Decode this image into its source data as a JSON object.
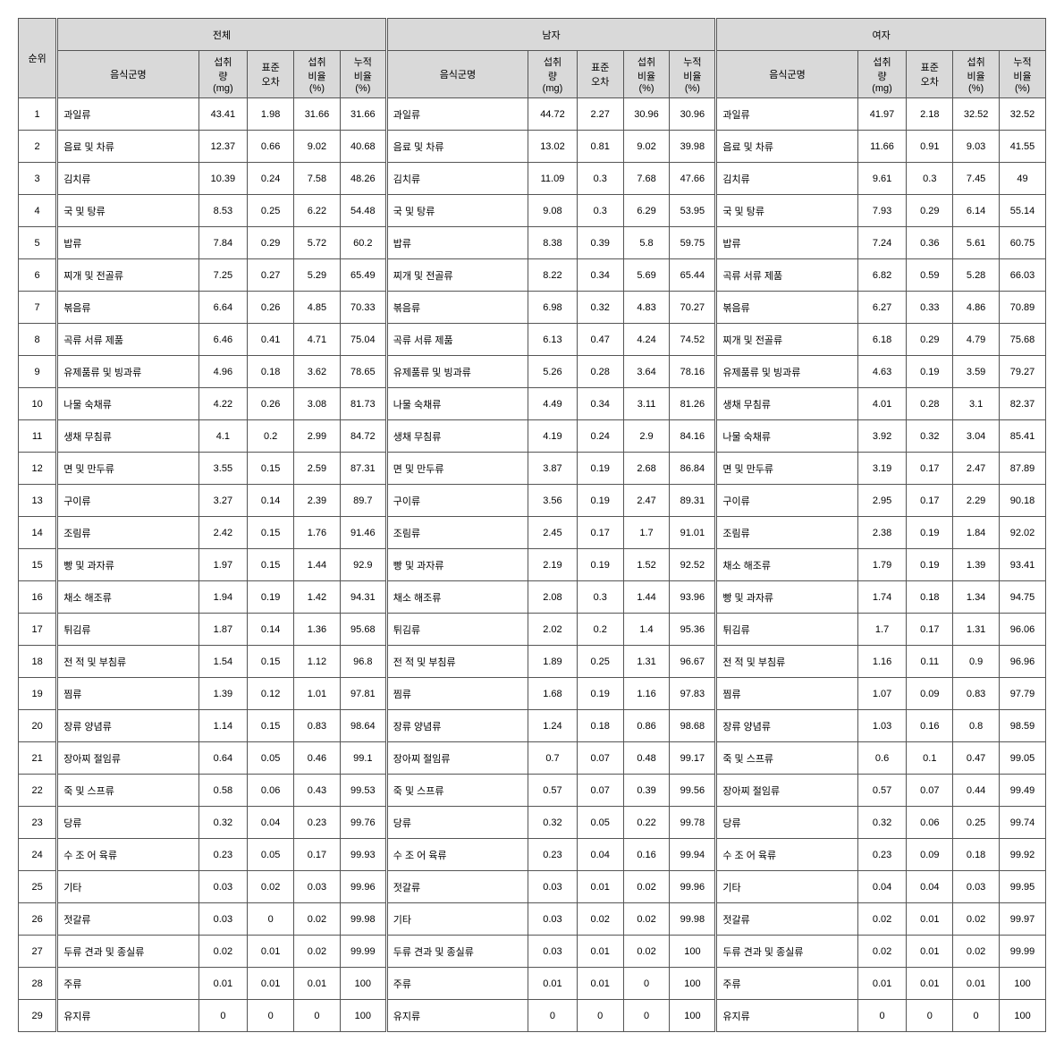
{
  "type": "table",
  "title": "",
  "background_color": "#ffffff",
  "header_bg": "#d9d9d9",
  "border_color": "#555555",
  "font_family": "Malgun Gothic",
  "font_size_pt": 8,
  "headers": {
    "rank": "순위",
    "groups": [
      "전체",
      "남자",
      "여자"
    ],
    "sub": {
      "name": "음식군명",
      "intake": "섭취\n량\n(mg)",
      "se": "표준\n오차",
      "pct": "섭취\n비율\n(%)",
      "cum": "누적\n비율\n(%)"
    }
  },
  "columns": [
    "순위",
    "음식군명",
    "섭취량(mg)",
    "표준오차",
    "섭취비율(%)",
    "누적비율(%)",
    "음식군명",
    "섭취량(mg)",
    "표준오차",
    "섭취비율(%)",
    "누적비율(%)",
    "음식군명",
    "섭취량(mg)",
    "표준오차",
    "섭취비율(%)",
    "누적비율(%)"
  ],
  "rows": [
    {
      "rank": 1,
      "g": [
        {
          "name": "과일류",
          "v": [
            "43.41",
            "1.98",
            "31.66",
            "31.66"
          ]
        },
        {
          "name": "과일류",
          "v": [
            "44.72",
            "2.27",
            "30.96",
            "30.96"
          ]
        },
        {
          "name": "과일류",
          "v": [
            "41.97",
            "2.18",
            "32.52",
            "32.52"
          ]
        }
      ]
    },
    {
      "rank": 2,
      "g": [
        {
          "name": "음료 및 차류",
          "v": [
            "12.37",
            "0.66",
            "9.02",
            "40.68"
          ]
        },
        {
          "name": "음료 및 차류",
          "v": [
            "13.02",
            "0.81",
            "9.02",
            "39.98"
          ]
        },
        {
          "name": "음료 및 차류",
          "v": [
            "11.66",
            "0.91",
            "9.03",
            "41.55"
          ]
        }
      ]
    },
    {
      "rank": 3,
      "g": [
        {
          "name": "김치류",
          "v": [
            "10.39",
            "0.24",
            "7.58",
            "48.26"
          ]
        },
        {
          "name": "김치류",
          "v": [
            "11.09",
            "0.3",
            "7.68",
            "47.66"
          ]
        },
        {
          "name": "김치류",
          "v": [
            "9.61",
            "0.3",
            "7.45",
            "49"
          ]
        }
      ]
    },
    {
      "rank": 4,
      "g": [
        {
          "name": "국 및 탕류",
          "v": [
            "8.53",
            "0.25",
            "6.22",
            "54.48"
          ]
        },
        {
          "name": "국 및 탕류",
          "v": [
            "9.08",
            "0.3",
            "6.29",
            "53.95"
          ]
        },
        {
          "name": "국 및 탕류",
          "v": [
            "7.93",
            "0.29",
            "6.14",
            "55.14"
          ]
        }
      ]
    },
    {
      "rank": 5,
      "g": [
        {
          "name": "밥류",
          "v": [
            "7.84",
            "0.29",
            "5.72",
            "60.2"
          ]
        },
        {
          "name": "밥류",
          "v": [
            "8.38",
            "0.39",
            "5.8",
            "59.75"
          ]
        },
        {
          "name": "밥류",
          "v": [
            "7.24",
            "0.36",
            "5.61",
            "60.75"
          ]
        }
      ]
    },
    {
      "rank": 6,
      "g": [
        {
          "name": "찌개 및 전골류",
          "v": [
            "7.25",
            "0.27",
            "5.29",
            "65.49"
          ]
        },
        {
          "name": "찌개 및 전골류",
          "v": [
            "8.22",
            "0.34",
            "5.69",
            "65.44"
          ]
        },
        {
          "name": "곡류 서류 제품",
          "v": [
            "6.82",
            "0.59",
            "5.28",
            "66.03"
          ]
        }
      ]
    },
    {
      "rank": 7,
      "g": [
        {
          "name": "볶음류",
          "v": [
            "6.64",
            "0.26",
            "4.85",
            "70.33"
          ]
        },
        {
          "name": "볶음류",
          "v": [
            "6.98",
            "0.32",
            "4.83",
            "70.27"
          ]
        },
        {
          "name": "볶음류",
          "v": [
            "6.27",
            "0.33",
            "4.86",
            "70.89"
          ]
        }
      ]
    },
    {
      "rank": 8,
      "g": [
        {
          "name": "곡류 서류 제품",
          "v": [
            "6.46",
            "0.41",
            "4.71",
            "75.04"
          ]
        },
        {
          "name": "곡류 서류 제품",
          "v": [
            "6.13",
            "0.47",
            "4.24",
            "74.52"
          ]
        },
        {
          "name": "찌개 및 전골류",
          "v": [
            "6.18",
            "0.29",
            "4.79",
            "75.68"
          ]
        }
      ]
    },
    {
      "rank": 9,
      "g": [
        {
          "name": "유제품류 및 빙과류",
          "v": [
            "4.96",
            "0.18",
            "3.62",
            "78.65"
          ]
        },
        {
          "name": "유제품류 및 빙과류",
          "v": [
            "5.26",
            "0.28",
            "3.64",
            "78.16"
          ]
        },
        {
          "name": "유제품류 및 빙과류",
          "v": [
            "4.63",
            "0.19",
            "3.59",
            "79.27"
          ]
        }
      ]
    },
    {
      "rank": 10,
      "g": [
        {
          "name": "나물 숙채류",
          "v": [
            "4.22",
            "0.26",
            "3.08",
            "81.73"
          ]
        },
        {
          "name": "나물 숙채류",
          "v": [
            "4.49",
            "0.34",
            "3.11",
            "81.26"
          ]
        },
        {
          "name": "생채 무침류",
          "v": [
            "4.01",
            "0.28",
            "3.1",
            "82.37"
          ]
        }
      ]
    },
    {
      "rank": 11,
      "g": [
        {
          "name": "생채 무침류",
          "v": [
            "4.1",
            "0.2",
            "2.99",
            "84.72"
          ]
        },
        {
          "name": "생채 무침류",
          "v": [
            "4.19",
            "0.24",
            "2.9",
            "84.16"
          ]
        },
        {
          "name": "나물 숙채류",
          "v": [
            "3.92",
            "0.32",
            "3.04",
            "85.41"
          ]
        }
      ]
    },
    {
      "rank": 12,
      "g": [
        {
          "name": "면 및 만두류",
          "v": [
            "3.55",
            "0.15",
            "2.59",
            "87.31"
          ]
        },
        {
          "name": "면 및 만두류",
          "v": [
            "3.87",
            "0.19",
            "2.68",
            "86.84"
          ]
        },
        {
          "name": "면 및 만두류",
          "v": [
            "3.19",
            "0.17",
            "2.47",
            "87.89"
          ]
        }
      ]
    },
    {
      "rank": 13,
      "g": [
        {
          "name": "구이류",
          "v": [
            "3.27",
            "0.14",
            "2.39",
            "89.7"
          ]
        },
        {
          "name": "구이류",
          "v": [
            "3.56",
            "0.19",
            "2.47",
            "89.31"
          ]
        },
        {
          "name": "구이류",
          "v": [
            "2.95",
            "0.17",
            "2.29",
            "90.18"
          ]
        }
      ]
    },
    {
      "rank": 14,
      "g": [
        {
          "name": "조림류",
          "v": [
            "2.42",
            "0.15",
            "1.76",
            "91.46"
          ]
        },
        {
          "name": "조림류",
          "v": [
            "2.45",
            "0.17",
            "1.7",
            "91.01"
          ]
        },
        {
          "name": "조림류",
          "v": [
            "2.38",
            "0.19",
            "1.84",
            "92.02"
          ]
        }
      ]
    },
    {
      "rank": 15,
      "g": [
        {
          "name": "빵 및 과자류",
          "v": [
            "1.97",
            "0.15",
            "1.44",
            "92.9"
          ]
        },
        {
          "name": "빵 및 과자류",
          "v": [
            "2.19",
            "0.19",
            "1.52",
            "92.52"
          ]
        },
        {
          "name": "채소 해조류",
          "v": [
            "1.79",
            "0.19",
            "1.39",
            "93.41"
          ]
        }
      ]
    },
    {
      "rank": 16,
      "g": [
        {
          "name": "채소 해조류",
          "v": [
            "1.94",
            "0.19",
            "1.42",
            "94.31"
          ]
        },
        {
          "name": "채소 해조류",
          "v": [
            "2.08",
            "0.3",
            "1.44",
            "93.96"
          ]
        },
        {
          "name": "빵 및 과자류",
          "v": [
            "1.74",
            "0.18",
            "1.34",
            "94.75"
          ]
        }
      ]
    },
    {
      "rank": 17,
      "g": [
        {
          "name": "튀김류",
          "v": [
            "1.87",
            "0.14",
            "1.36",
            "95.68"
          ]
        },
        {
          "name": "튀김류",
          "v": [
            "2.02",
            "0.2",
            "1.4",
            "95.36"
          ]
        },
        {
          "name": "튀김류",
          "v": [
            "1.7",
            "0.17",
            "1.31",
            "96.06"
          ]
        }
      ]
    },
    {
      "rank": 18,
      "g": [
        {
          "name": "전 적 및 부침류",
          "v": [
            "1.54",
            "0.15",
            "1.12",
            "96.8"
          ]
        },
        {
          "name": "전 적 및 부침류",
          "v": [
            "1.89",
            "0.25",
            "1.31",
            "96.67"
          ]
        },
        {
          "name": "전 적 및 부침류",
          "v": [
            "1.16",
            "0.11",
            "0.9",
            "96.96"
          ]
        }
      ]
    },
    {
      "rank": 19,
      "g": [
        {
          "name": "찜류",
          "v": [
            "1.39",
            "0.12",
            "1.01",
            "97.81"
          ]
        },
        {
          "name": "찜류",
          "v": [
            "1.68",
            "0.19",
            "1.16",
            "97.83"
          ]
        },
        {
          "name": "찜류",
          "v": [
            "1.07",
            "0.09",
            "0.83",
            "97.79"
          ]
        }
      ]
    },
    {
      "rank": 20,
      "g": [
        {
          "name": "장류 양념류",
          "v": [
            "1.14",
            "0.15",
            "0.83",
            "98.64"
          ]
        },
        {
          "name": "장류 양념류",
          "v": [
            "1.24",
            "0.18",
            "0.86",
            "98.68"
          ]
        },
        {
          "name": "장류 양념류",
          "v": [
            "1.03",
            "0.16",
            "0.8",
            "98.59"
          ]
        }
      ]
    },
    {
      "rank": 21,
      "g": [
        {
          "name": "장아찌 절임류",
          "v": [
            "0.64",
            "0.05",
            "0.46",
            "99.1"
          ]
        },
        {
          "name": "장아찌 절임류",
          "v": [
            "0.7",
            "0.07",
            "0.48",
            "99.17"
          ]
        },
        {
          "name": "죽 및 스프류",
          "v": [
            "0.6",
            "0.1",
            "0.47",
            "99.05"
          ]
        }
      ]
    },
    {
      "rank": 22,
      "g": [
        {
          "name": "죽 및 스프류",
          "v": [
            "0.58",
            "0.06",
            "0.43",
            "99.53"
          ]
        },
        {
          "name": "죽 및 스프류",
          "v": [
            "0.57",
            "0.07",
            "0.39",
            "99.56"
          ]
        },
        {
          "name": "장아찌 절임류",
          "v": [
            "0.57",
            "0.07",
            "0.44",
            "99.49"
          ]
        }
      ]
    },
    {
      "rank": 23,
      "g": [
        {
          "name": "당류",
          "v": [
            "0.32",
            "0.04",
            "0.23",
            "99.76"
          ]
        },
        {
          "name": "당류",
          "v": [
            "0.32",
            "0.05",
            "0.22",
            "99.78"
          ]
        },
        {
          "name": "당류",
          "v": [
            "0.32",
            "0.06",
            "0.25",
            "99.74"
          ]
        }
      ]
    },
    {
      "rank": 24,
      "g": [
        {
          "name": "수 조 어 육류",
          "v": [
            "0.23",
            "0.05",
            "0.17",
            "99.93"
          ]
        },
        {
          "name": "수 조 어 육류",
          "v": [
            "0.23",
            "0.04",
            "0.16",
            "99.94"
          ]
        },
        {
          "name": "수 조 어 육류",
          "v": [
            "0.23",
            "0.09",
            "0.18",
            "99.92"
          ]
        }
      ]
    },
    {
      "rank": 25,
      "g": [
        {
          "name": "기타",
          "v": [
            "0.03",
            "0.02",
            "0.03",
            "99.96"
          ]
        },
        {
          "name": "젓갈류",
          "v": [
            "0.03",
            "0.01",
            "0.02",
            "99.96"
          ]
        },
        {
          "name": "기타",
          "v": [
            "0.04",
            "0.04",
            "0.03",
            "99.95"
          ]
        }
      ]
    },
    {
      "rank": 26,
      "g": [
        {
          "name": "젓갈류",
          "v": [
            "0.03",
            "0",
            "0.02",
            "99.98"
          ]
        },
        {
          "name": "기타",
          "v": [
            "0.03",
            "0.02",
            "0.02",
            "99.98"
          ]
        },
        {
          "name": "젓갈류",
          "v": [
            "0.02",
            "0.01",
            "0.02",
            "99.97"
          ]
        }
      ]
    },
    {
      "rank": 27,
      "g": [
        {
          "name": "두류 견과 및 종실류",
          "v": [
            "0.02",
            "0.01",
            "0.02",
            "99.99"
          ]
        },
        {
          "name": "두류 견과 및 종실류",
          "v": [
            "0.03",
            "0.01",
            "0.02",
            "100"
          ]
        },
        {
          "name": "두류 견과 및 종실류",
          "v": [
            "0.02",
            "0.01",
            "0.02",
            "99.99"
          ]
        }
      ]
    },
    {
      "rank": 28,
      "g": [
        {
          "name": "주류",
          "v": [
            "0.01",
            "0.01",
            "0.01",
            "100"
          ]
        },
        {
          "name": "주류",
          "v": [
            "0.01",
            "0.01",
            "0",
            "100"
          ]
        },
        {
          "name": "주류",
          "v": [
            "0.01",
            "0.01",
            "0.01",
            "100"
          ]
        }
      ]
    },
    {
      "rank": 29,
      "g": [
        {
          "name": "유지류",
          "v": [
            "0",
            "0",
            "0",
            "100"
          ]
        },
        {
          "name": "유지류",
          "v": [
            "0",
            "0",
            "0",
            "100"
          ]
        },
        {
          "name": "유지류",
          "v": [
            "0",
            "0",
            "0",
            "100"
          ]
        }
      ]
    }
  ]
}
